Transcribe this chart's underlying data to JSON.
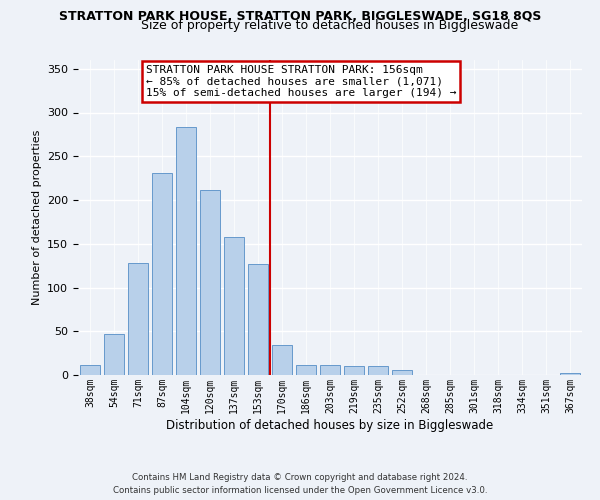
{
  "title": "STRATTON PARK HOUSE, STRATTON PARK, BIGGLESWADE, SG18 8QS",
  "subtitle": "Size of property relative to detached houses in Biggleswade",
  "xlabel": "Distribution of detached houses by size in Biggleswade",
  "ylabel": "Number of detached properties",
  "bar_labels": [
    "38sqm",
    "54sqm",
    "71sqm",
    "87sqm",
    "104sqm",
    "120sqm",
    "137sqm",
    "153sqm",
    "170sqm",
    "186sqm",
    "203sqm",
    "219sqm",
    "235sqm",
    "252sqm",
    "268sqm",
    "285sqm",
    "301sqm",
    "318sqm",
    "334sqm",
    "351sqm",
    "367sqm"
  ],
  "bar_values": [
    11,
    47,
    128,
    231,
    284,
    211,
    158,
    127,
    34,
    12,
    12,
    10,
    10,
    6,
    0,
    0,
    0,
    0,
    0,
    0,
    2
  ],
  "bar_color": "#b8d0ea",
  "bar_edge_color": "#6699cc",
  "marker_label": "STRATTON PARK HOUSE STRATTON PARK: 156sqm",
  "annotation_line1": "← 85% of detached houses are smaller (1,071)",
  "annotation_line2": "15% of semi-detached houses are larger (194) →",
  "annotation_box_color": "#ffffff",
  "annotation_box_edge": "#cc0000",
  "marker_line_color": "#cc0000",
  "ylim": [
    0,
    360
  ],
  "yticks": [
    0,
    50,
    100,
    150,
    200,
    250,
    300,
    350
  ],
  "footnote1": "Contains HM Land Registry data © Crown copyright and database right 2024.",
  "footnote2": "Contains public sector information licensed under the Open Government Licence v3.0.",
  "background_color": "#eef2f8"
}
